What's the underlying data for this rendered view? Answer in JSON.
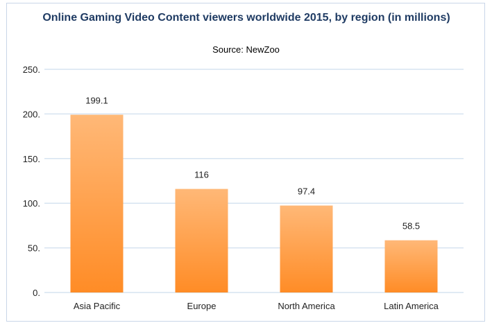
{
  "chart_data": {
    "type": "bar",
    "title": "Online Gaming Video Content viewers worldwide 2015, by region (in millions)",
    "subtitle": "Source: NewZoo",
    "categories": [
      "Asia Pacific",
      "Europe",
      "North America",
      "Latin America"
    ],
    "values": [
      199.1,
      116,
      97.4,
      58.5
    ],
    "data_labels": [
      "199.1",
      "116",
      "97.4",
      "58.5"
    ],
    "ylim": [
      0,
      250
    ],
    "yticks": [
      0,
      50,
      100,
      150,
      200,
      250
    ],
    "ytick_labels": [
      "0.",
      "50.",
      "100.",
      "150.",
      "200.",
      "250."
    ],
    "grid": true,
    "legend": "none",
    "bar_color_top": "#ffb877",
    "bar_color_bottom": "#ff8c26",
    "gridline_color": "#d6e3f0"
  }
}
